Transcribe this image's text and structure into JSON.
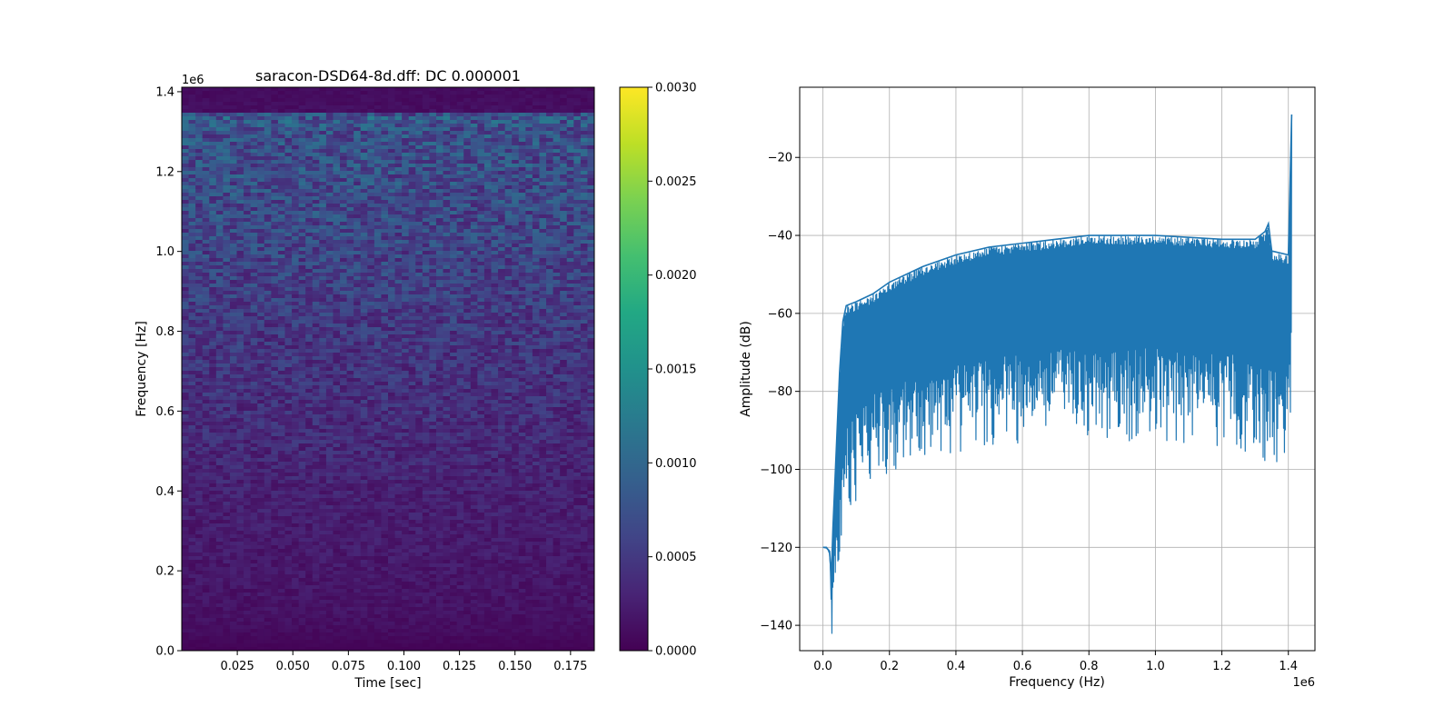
{
  "chart_data": [
    {
      "type": "heatmap",
      "title": "saracon-DSD64-8d.dff: DC 0.000001",
      "xlabel": "Time [sec]",
      "ylabel": "Frequency [Hz]",
      "y_offset_label": "1e6",
      "xlim": [
        0.0,
        0.1857
      ],
      "ylim": [
        0.0,
        1.4112
      ],
      "xticks": [
        0.025,
        0.05,
        0.075,
        0.1,
        0.125,
        0.15,
        0.175
      ],
      "xtick_labels": [
        "0.025",
        "0.050",
        "0.075",
        "0.100",
        "0.125",
        "0.150",
        "0.175"
      ],
      "yticks": [
        0.0,
        0.2,
        0.4,
        0.6,
        0.8,
        1.0,
        1.2,
        1.4
      ],
      "ytick_labels": [
        "0.0",
        "0.2",
        "0.4",
        "0.6",
        "0.8",
        "1.0",
        "1.2",
        "1.4"
      ],
      "colormap": "viridis",
      "colorbar": {
        "vmin": 0.0,
        "vmax": 0.003,
        "ticks": [
          0.0,
          0.0005,
          0.001,
          0.0015,
          0.002,
          0.0025,
          0.003
        ],
        "tick_labels": [
          "0.0000",
          "0.0005",
          "0.0010",
          "0.0015",
          "0.0020",
          "0.0025",
          "0.0030"
        ]
      },
      "frequency_profile": {
        "frequency": [
          0.0,
          0.02,
          0.05,
          0.1,
          0.2,
          0.3,
          0.4,
          0.5,
          0.6,
          0.7,
          0.8,
          0.9,
          1.0,
          1.1,
          1.2,
          1.3,
          1.33,
          1.34,
          1.35,
          1.38,
          1.41
        ],
        "mean_magnitude": [
          2e-05,
          5e-05,
          0.0001,
          0.00015,
          0.00019,
          0.00023,
          0.00028,
          0.00034,
          0.00039,
          0.00044,
          0.00049,
          0.00055,
          0.00061,
          0.00066,
          0.00071,
          0.00074,
          0.0008,
          0.00095,
          0.00012,
          0.0001,
          9e-05
        ]
      }
    },
    {
      "type": "line",
      "xlabel": "Frequency (Hz)",
      "ylabel": "Amplitude (dB)",
      "x_offset_label": "1e6",
      "xlim": [
        -0.07,
        1.48
      ],
      "ylim": [
        -146.5,
        -2
      ],
      "grid": true,
      "color": "#1f77b4",
      "xticks": [
        0.0,
        0.2,
        0.4,
        0.6,
        0.8,
        1.0,
        1.2,
        1.4
      ],
      "xtick_labels": [
        "0.0",
        "0.2",
        "0.4",
        "0.6",
        "0.8",
        "1.0",
        "1.2",
        "1.4"
      ],
      "yticks": [
        -140,
        -120,
        -100,
        -80,
        -60,
        -40,
        -20
      ],
      "ytick_labels": [
        "−140",
        "−120",
        "−100",
        "−80",
        "−60",
        "−40",
        "−20"
      ],
      "envelope": {
        "x": [
          0.0,
          0.01,
          0.02,
          0.025,
          0.03,
          0.04,
          0.05,
          0.06,
          0.07,
          0.1,
          0.15,
          0.2,
          0.3,
          0.4,
          0.5,
          0.6,
          0.7,
          0.8,
          0.9,
          1.0,
          1.1,
          1.2,
          1.3,
          1.33,
          1.34,
          1.35,
          1.4,
          1.41
        ],
        "upper": [
          -120,
          -120,
          -121,
          -128,
          -115,
          -95,
          -75,
          -62,
          -58,
          -57,
          -55,
          -52,
          -48,
          -45,
          -43,
          -42,
          -41,
          -40,
          -40,
          -40,
          -40.5,
          -41,
          -41,
          -39,
          -37,
          -44,
          -45,
          -9
        ],
        "lower": [
          -120,
          -120.5,
          -122,
          -140,
          -137,
          -125,
          -118,
          -112,
          -106,
          -103,
          -97,
          -96,
          -94,
          -92,
          -90,
          -89,
          -88,
          -88,
          -88,
          -88,
          -89,
          -89,
          -91,
          -93,
          -97,
          -95,
          -94,
          -94
        ]
      }
    }
  ]
}
